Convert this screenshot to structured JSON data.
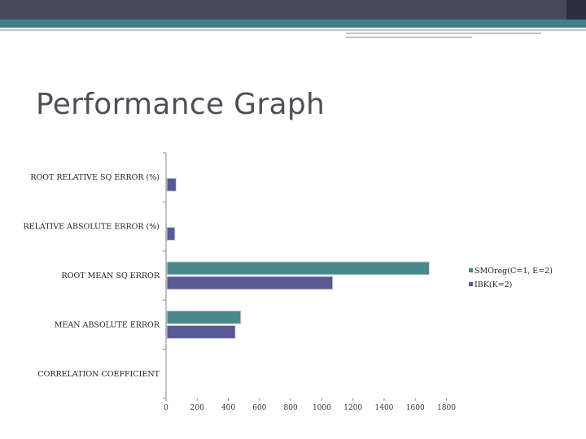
{
  "slide": {
    "title": "Performance Graph",
    "colors": {
      "dark_bar": "#474a5b",
      "accent_teal": "#3f7f86"
    }
  },
  "chart_data": {
    "type": "bar",
    "orientation": "horizontal",
    "categories": [
      "ROOT RELATIVE SQ ERROR (%)",
      "RELATIVE ABSOLUTE ERROR (%)",
      "ROOT MEAN SQ ERROR",
      "MEAN ABSOLUTE ERROR",
      "CORRELATION COEFFICIENT"
    ],
    "series": [
      {
        "name": "SMOreg(C=1, E=2)",
        "color": "#4a8a8e",
        "values": [
          0,
          0,
          1690,
          480,
          0
        ]
      },
      {
        "name": "IBK(K=2)",
        "color": "#575a94",
        "values": [
          65,
          57,
          1070,
          445,
          0
        ]
      }
    ],
    "xticks": [
      0,
      200,
      400,
      600,
      800,
      1000,
      1200,
      1400,
      1600,
      1800
    ],
    "xlim": [
      0,
      1800
    ],
    "legend_position": "right",
    "grid": false
  }
}
